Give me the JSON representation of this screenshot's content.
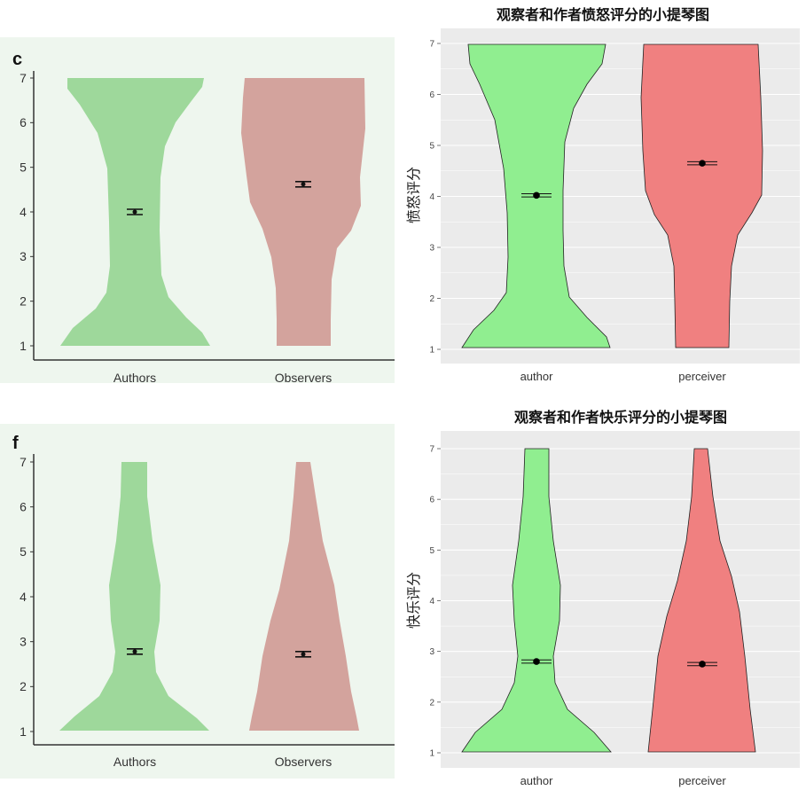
{
  "colors": {
    "panel_bg_left": "#eef6ee",
    "author_left": "#9ed89b",
    "observer_left": "#d3a39d",
    "panel_bg_right": "#ebebeb",
    "author_right": "#90ee90",
    "perceiver_right": "#f08080",
    "grid_right": "#ffffff",
    "mean_marker": "#000000"
  },
  "chart_data": [
    {
      "type": "violin",
      "panel_label": "c",
      "title": "",
      "xlabel": "",
      "ylabel": "",
      "ylim": [
        1,
        7
      ],
      "yticks": [
        "1",
        "2",
        "3",
        "4",
        "5",
        "6",
        "7"
      ],
      "categories": [
        "Authors",
        "Observers"
      ],
      "series": [
        {
          "means": [
            4.0,
            4.62
          ]
        }
      ]
    },
    {
      "type": "violin",
      "title": "观察者和作者愤怒评分的小提琴图",
      "xlabel": "",
      "ylabel": "愤怒评分",
      "ylim": [
        1,
        7
      ],
      "yticks": [
        "1",
        "2",
        "3",
        "4",
        "5",
        "6",
        "7"
      ],
      "categories": [
        "author",
        "perceiver"
      ],
      "series": [
        {
          "means": [
            4.02,
            4.65
          ]
        }
      ]
    },
    {
      "type": "violin",
      "panel_label": "f",
      "title": "",
      "xlabel": "",
      "ylabel": "",
      "ylim": [
        1,
        7
      ],
      "yticks": [
        "1",
        "2",
        "3",
        "4",
        "5",
        "6",
        "7"
      ],
      "categories": [
        "Authors",
        "Observers"
      ],
      "series": [
        {
          "means": [
            2.78,
            2.72
          ]
        }
      ]
    },
    {
      "type": "violin",
      "title": "观察者和作者快乐评分的小提琴图",
      "xlabel": "",
      "ylabel": "快乐评分",
      "ylim": [
        1,
        7
      ],
      "yticks": [
        "1",
        "2",
        "3",
        "4",
        "5",
        "6",
        "7"
      ],
      "categories": [
        "author",
        "perceiver"
      ],
      "series": [
        {
          "means": [
            2.8,
            2.75
          ]
        }
      ]
    }
  ]
}
